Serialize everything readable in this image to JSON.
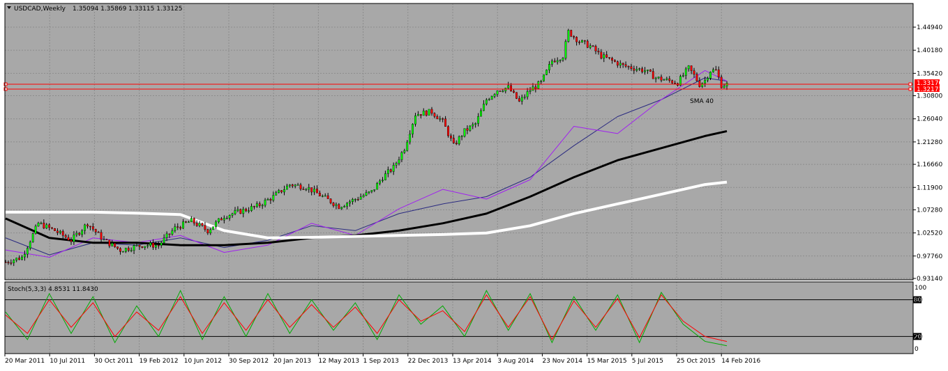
{
  "chart_header": {
    "symbol_label": "USDCAD,Weekly",
    "ohlc": "1.35094 1.35869 1.33115 1.33125",
    "menu_arrow": "triangle-down-icon"
  },
  "stoch_header": {
    "label": "Stoch(5,3,3) 4.8531 11.8430"
  },
  "sma_label": "SMA 40",
  "price_badges": {
    "upper": "1.33170",
    "lower": "1.32173"
  },
  "colors": {
    "background": "#a8a8a8",
    "grid": "#8c8c8c",
    "candle_up": "#00ff00",
    "candle_down": "#ff0000",
    "candle_wick": "#000000",
    "sma_violet": "#a020f0",
    "sma_navy": "#2a2a80",
    "sma_black": "#000000",
    "sma_white": "#ffffff",
    "hline": "#ff0000",
    "stoch_main": "#00aa00",
    "stoch_signal": "#ff0000"
  },
  "chart_data": [
    {
      "type": "candlestick",
      "title": "USDCAD,Weekly",
      "y_ticks": [
        "1.44940",
        "1.40180",
        "1.35420",
        "1.30800",
        "1.26040",
        "1.21280",
        "1.16660",
        "1.11900",
        "1.07280",
        "1.02520",
        "0.97760",
        "0.93140"
      ],
      "ylim": [
        0.9314,
        1.4494
      ],
      "x_ticks": [
        "20 Mar 2011",
        "10 Jul 2011",
        "30 Oct 2011",
        "19 Feb 2012",
        "10 Jun 2012",
        "30 Sep 2012",
        "20 Jan 2013",
        "12 May 2013",
        "1 Sep 2013",
        "22 Dec 2013",
        "13 Apr 2014",
        "3 Aug 2014",
        "23 Nov 2014",
        "15 Mar 2015",
        "5 Jul 2015",
        "25 Oct 2015",
        "14 Feb 2016"
      ],
      "horizontal_lines": [
        1.3317,
        1.32173
      ],
      "series": [
        {
          "name": "SMA 40",
          "key": "sma40",
          "x": [
            0,
            16,
            32,
            48,
            64,
            80,
            96,
            112,
            128,
            144,
            160,
            176,
            192,
            208,
            224,
            240,
            256,
            264
          ],
          "y": [
            1.015,
            0.98,
            1.005,
            1.0,
            1.015,
            0.995,
            1.01,
            1.04,
            1.03,
            1.065,
            1.085,
            1.1,
            1.14,
            1.205,
            1.265,
            1.3,
            1.345,
            1.338
          ]
        },
        {
          "name": "",
          "key": "sma_violet",
          "x": [
            0,
            16,
            32,
            48,
            64,
            80,
            96,
            112,
            128,
            144,
            160,
            176,
            192,
            208,
            224,
            240,
            256,
            264
          ],
          "y": [
            0.99,
            0.975,
            1.015,
            1.005,
            1.02,
            0.985,
            1.0,
            1.045,
            1.02,
            1.075,
            1.115,
            1.095,
            1.135,
            1.245,
            1.23,
            1.3,
            1.36,
            1.338
          ]
        },
        {
          "name": "",
          "key": "sma_black",
          "x": [
            0,
            16,
            32,
            48,
            64,
            80,
            96,
            112,
            128,
            144,
            160,
            176,
            192,
            208,
            224,
            240,
            256,
            264
          ],
          "y": [
            1.055,
            1.015,
            1.005,
            1.005,
            1.0,
            1.0,
            1.005,
            1.015,
            1.02,
            1.03,
            1.045,
            1.065,
            1.1,
            1.14,
            1.175,
            1.2,
            1.225,
            1.235
          ]
        },
        {
          "name": "",
          "key": "sma_white",
          "x": [
            0,
            16,
            32,
            48,
            64,
            80,
            96,
            112,
            128,
            144,
            160,
            176,
            192,
            208,
            224,
            240,
            256,
            264
          ],
          "y": [
            1.068,
            1.068,
            1.068,
            1.066,
            1.063,
            1.03,
            1.015,
            1.016,
            1.018,
            1.02,
            1.022,
            1.025,
            1.04,
            1.065,
            1.085,
            1.105,
            1.125,
            1.13
          ]
        }
      ],
      "close_path": {
        "x": [
          0,
          6,
          12,
          18,
          24,
          30,
          36,
          42,
          50,
          56,
          62,
          68,
          74,
          80,
          86,
          92,
          98,
          104,
          110,
          116,
          122,
          128,
          134,
          138,
          142,
          146,
          150,
          156,
          160,
          164,
          168,
          172,
          176,
          180,
          184,
          188,
          192,
          196,
          200,
          204,
          206,
          210,
          214,
          218,
          222,
          226,
          230,
          234,
          238,
          242,
          246,
          250,
          252,
          254,
          256,
          258,
          260,
          262,
          264
        ],
        "y": [
          0.965,
          0.975,
          1.045,
          1.03,
          1.01,
          1.045,
          1.01,
          0.99,
          1.0,
          1.0,
          1.035,
          1.05,
          1.03,
          1.06,
          1.07,
          1.08,
          1.1,
          1.125,
          1.12,
          1.1,
          1.08,
          1.095,
          1.11,
          1.14,
          1.16,
          1.2,
          1.27,
          1.275,
          1.255,
          1.205,
          1.235,
          1.25,
          1.3,
          1.32,
          1.325,
          1.295,
          1.32,
          1.335,
          1.38,
          1.39,
          1.44,
          1.42,
          1.41,
          1.39,
          1.38,
          1.37,
          1.365,
          1.36,
          1.345,
          1.34,
          1.335,
          1.365,
          1.35,
          1.3313,
          1.34,
          1.36,
          1.36,
          1.33,
          1.3313
        ]
      }
    },
    {
      "type": "line",
      "title": "Stoch(5,3,3) 4.8531 11.8430",
      "y_ticks": [
        "100",
        "80",
        "20",
        "0"
      ],
      "ylim": [
        0,
        100
      ],
      "levels": [
        80,
        20
      ],
      "series": [
        {
          "name": "",
          "key": "main",
          "x": [
            0,
            8,
            16,
            24,
            32,
            40,
            48,
            56,
            64,
            72,
            80,
            88,
            96,
            104,
            112,
            120,
            128,
            136,
            144,
            152,
            160,
            168,
            176,
            184,
            192,
            200,
            208,
            216,
            224,
            232,
            240,
            248,
            256,
            264
          ],
          "y": [
            60,
            15,
            90,
            25,
            85,
            10,
            70,
            20,
            95,
            15,
            85,
            20,
            90,
            25,
            80,
            30,
            75,
            15,
            88,
            40,
            70,
            20,
            95,
            30,
            90,
            10,
            85,
            30,
            88,
            10,
            92,
            40,
            12,
            4.85
          ]
        },
        {
          "name": "",
          "key": "signal",
          "x": [
            0,
            8,
            16,
            24,
            32,
            40,
            48,
            56,
            64,
            72,
            80,
            88,
            96,
            104,
            112,
            120,
            128,
            136,
            144,
            152,
            160,
            168,
            176,
            184,
            192,
            200,
            208,
            216,
            224,
            232,
            240,
            248,
            256,
            264
          ],
          "y": [
            55,
            25,
            80,
            35,
            75,
            20,
            60,
            30,
            85,
            25,
            75,
            30,
            80,
            35,
            72,
            35,
            68,
            25,
            80,
            45,
            62,
            28,
            88,
            35,
            85,
            15,
            78,
            35,
            82,
            18,
            88,
            45,
            20,
            11.84
          ]
        }
      ]
    }
  ]
}
